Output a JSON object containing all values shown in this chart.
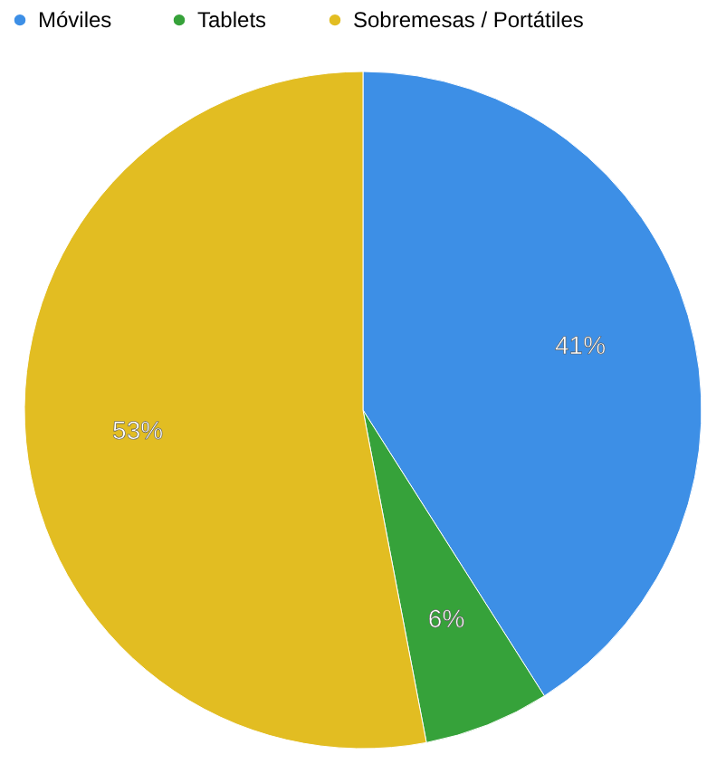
{
  "chart_data": {
    "type": "pie",
    "categories": [
      "Móviles",
      "Tablets",
      "Sobremesas / Portátiles"
    ],
    "values": [
      41,
      6,
      53
    ],
    "colors": [
      "#3d8fe6",
      "#36a23a",
      "#e2bd22"
    ],
    "value_labels": [
      "41%",
      "6%",
      "53%"
    ],
    "legend": "top"
  }
}
